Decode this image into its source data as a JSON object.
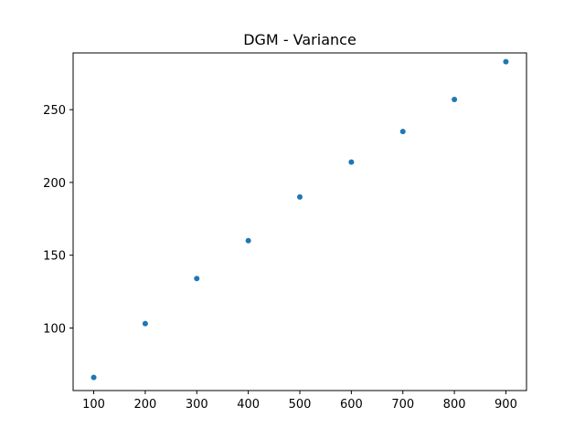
{
  "chart_data": {
    "type": "scatter",
    "title": "DGM - Variance",
    "xlabel": "",
    "ylabel": "",
    "xlim": [
      60,
      940
    ],
    "ylim": [
      57,
      289
    ],
    "x_ticks": [
      100,
      200,
      300,
      400,
      500,
      600,
      700,
      800,
      900
    ],
    "y_ticks": [
      100,
      150,
      200,
      250
    ],
    "grid": false,
    "legend": "none",
    "marker_color": "#1f77b4",
    "x": [
      100,
      200,
      300,
      400,
      500,
      600,
      700,
      800,
      900
    ],
    "y": [
      66,
      103,
      134,
      160,
      190,
      214,
      235,
      257,
      283
    ]
  }
}
